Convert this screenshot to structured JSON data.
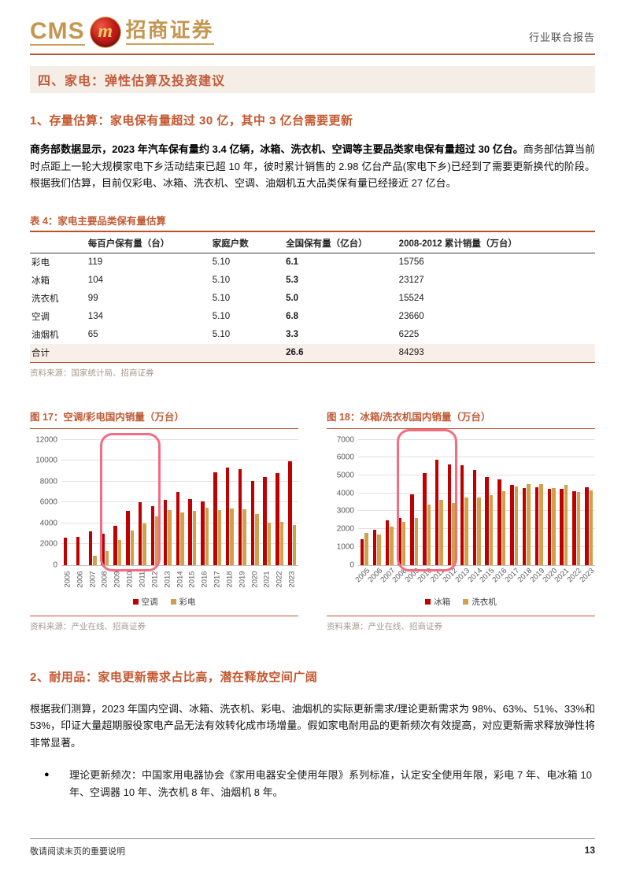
{
  "header": {
    "logo_cms": "CMS",
    "logo_m": "m",
    "logo_cn": "招商证券",
    "report_type": "行业联合报告"
  },
  "section": {
    "title": "四、家电：弹性估算及投资建议"
  },
  "sub1": {
    "title": "1、存量估算：家电保有量超过 30 亿，其中 3 亿台需要更新",
    "para_bold": "商务部数据显示，2023 年汽车保有量约 3.4 亿辆，冰箱、洗衣机、空调等主要品类家电保有量超过 30 亿台。",
    "para_rest": "商务部估算当前时点距上一轮大规模家电下乡活动结束已超 10 年，彼时累计销售的 2.98 亿台产品(家电下乡)已经到了需要更新换代的阶段。根据我们估算，目前仅彩电、冰箱、洗衣机、空调、油烟机五大品类保有量已经接近 27 亿台。"
  },
  "table": {
    "title": "表 4：家电主要品类保有量估算",
    "headers": [
      "",
      "每百户保有量（台）",
      "家庭户数",
      "全国保有量（亿台）",
      "2008-2012 累计销量（万台）"
    ],
    "col_widths": [
      "10%",
      "22%",
      "13%",
      "20%",
      "35%"
    ],
    "rows": [
      [
        "彩电",
        "119",
        "5.10",
        "6.1",
        "15756"
      ],
      [
        "冰箱",
        "104",
        "5.10",
        "5.3",
        "23127"
      ],
      [
        "洗衣机",
        "99",
        "5.10",
        "5.0",
        "15524"
      ],
      [
        "空调",
        "134",
        "5.10",
        "6.8",
        "23660"
      ],
      [
        "油烟机",
        "65",
        "5.10",
        "3.3",
        "6225"
      ]
    ],
    "total_row": [
      "合计",
      "",
      "",
      "26.6",
      "84293"
    ],
    "source": "资料来源：国家统计局、招商证券"
  },
  "chart_data": [
    {
      "type": "bar",
      "title": "图 17：空调/彩电国内销量（万台）",
      "categories": [
        "2005",
        "2006",
        "2007",
        "2008",
        "2009",
        "2010",
        "2011",
        "2012",
        "2013",
        "2014",
        "2015",
        "2016",
        "2017",
        "2018",
        "2019",
        "2020",
        "2021",
        "2022",
        "2023"
      ],
      "series": [
        {
          "name": "空调",
          "color": "#C00000",
          "values": [
            2600,
            2650,
            3200,
            3000,
            3750,
            5150,
            6000,
            5650,
            6250,
            7000,
            6300,
            6050,
            8850,
            9300,
            9200,
            8050,
            8450,
            8800,
            9950
          ]
        },
        {
          "name": "彩电",
          "color": "#D0A04A",
          "values": [
            0,
            0,
            900,
            1300,
            2400,
            3300,
            3950,
            4650,
            5250,
            5000,
            5150,
            5500,
            5250,
            5400,
            5300,
            4850,
            4050,
            4100,
            3850
          ]
        }
      ],
      "ylim": [
        0,
        12000
      ],
      "ytick": 2000,
      "grid": true,
      "legend_position": "bottom",
      "xlabel": "",
      "ylabel": "",
      "xlabel_rotation": -90,
      "highlight_years": [
        "2008",
        "2012"
      ],
      "highlight_color": "#F26D83",
      "source": "资料来源：产业在线、招商证券"
    },
    {
      "type": "bar",
      "title": "图 18：冰箱/洗衣机国内销量（万台）",
      "categories": [
        "2005",
        "2006",
        "2007",
        "2008",
        "2009",
        "2010",
        "2011",
        "2012",
        "2013",
        "2014",
        "2015",
        "2016",
        "2017",
        "2018",
        "2019",
        "2020",
        "2021",
        "2022",
        "2023"
      ],
      "series": [
        {
          "name": "冰箱",
          "color": "#C00000",
          "values": [
            1450,
            1950,
            2480,
            2600,
            3950,
            5150,
            5900,
            5600,
            5580,
            5300,
            4930,
            4760,
            4480,
            4300,
            4330,
            4250,
            4250,
            4100,
            4350
          ]
        },
        {
          "name": "洗衣机",
          "color": "#D0A04A",
          "values": [
            1800,
            1680,
            2120,
            2380,
            2630,
            3370,
            3630,
            3470,
            3760,
            3760,
            3900,
            4110,
            4400,
            4520,
            4510,
            4290,
            4450,
            4060,
            4180
          ]
        }
      ],
      "ylim": [
        0,
        7000
      ],
      "ytick": 1000,
      "grid": true,
      "legend_position": "bottom",
      "xlabel": "",
      "ylabel": "",
      "xlabel_rotation": -45,
      "highlight_years": [
        "2008",
        "2012"
      ],
      "highlight_color": "#F26D83",
      "source": "资料来源：产业在线、招商证券"
    }
  ],
  "sub2": {
    "title": "2、耐用品：家电更新需求占比高，潜在释放空间广阔",
    "para": "根据我们测算，2023 年国内空调、冰箱、洗衣机、彩电、油烟机的实际更新需求/理论更新需求为 98%、63%、51%、33%和 53%，印证大量超期服役家电产品无法有效转化成市场增量。假如家电耐用品的更新频次有效提高，对应更新需求释放弹性将非常显著。",
    "bullet_marker": "●",
    "bullet": "理论更新频次：中国家用电器协会《家用电器安全使用年限》系列标准，认定安全使用年限，彩电 7 年、电冰箱 10 年、空调器 10 年、洗衣机 8 年、油烟机 8 年。"
  },
  "footer": {
    "disclaimer": "敬请阅读末页的重要说明",
    "page_number": "13"
  },
  "colors": {
    "accent_terracotta": "#C25B3B",
    "rule_orange": "#BF4F28",
    "bar_red": "#C00000",
    "bar_gold": "#D0A04A",
    "highlight_pink": "#F26D83",
    "logo_gold": "#C4964F",
    "section_bg": "#F4EEE6",
    "total_row_bg": "#F9EFEA"
  }
}
